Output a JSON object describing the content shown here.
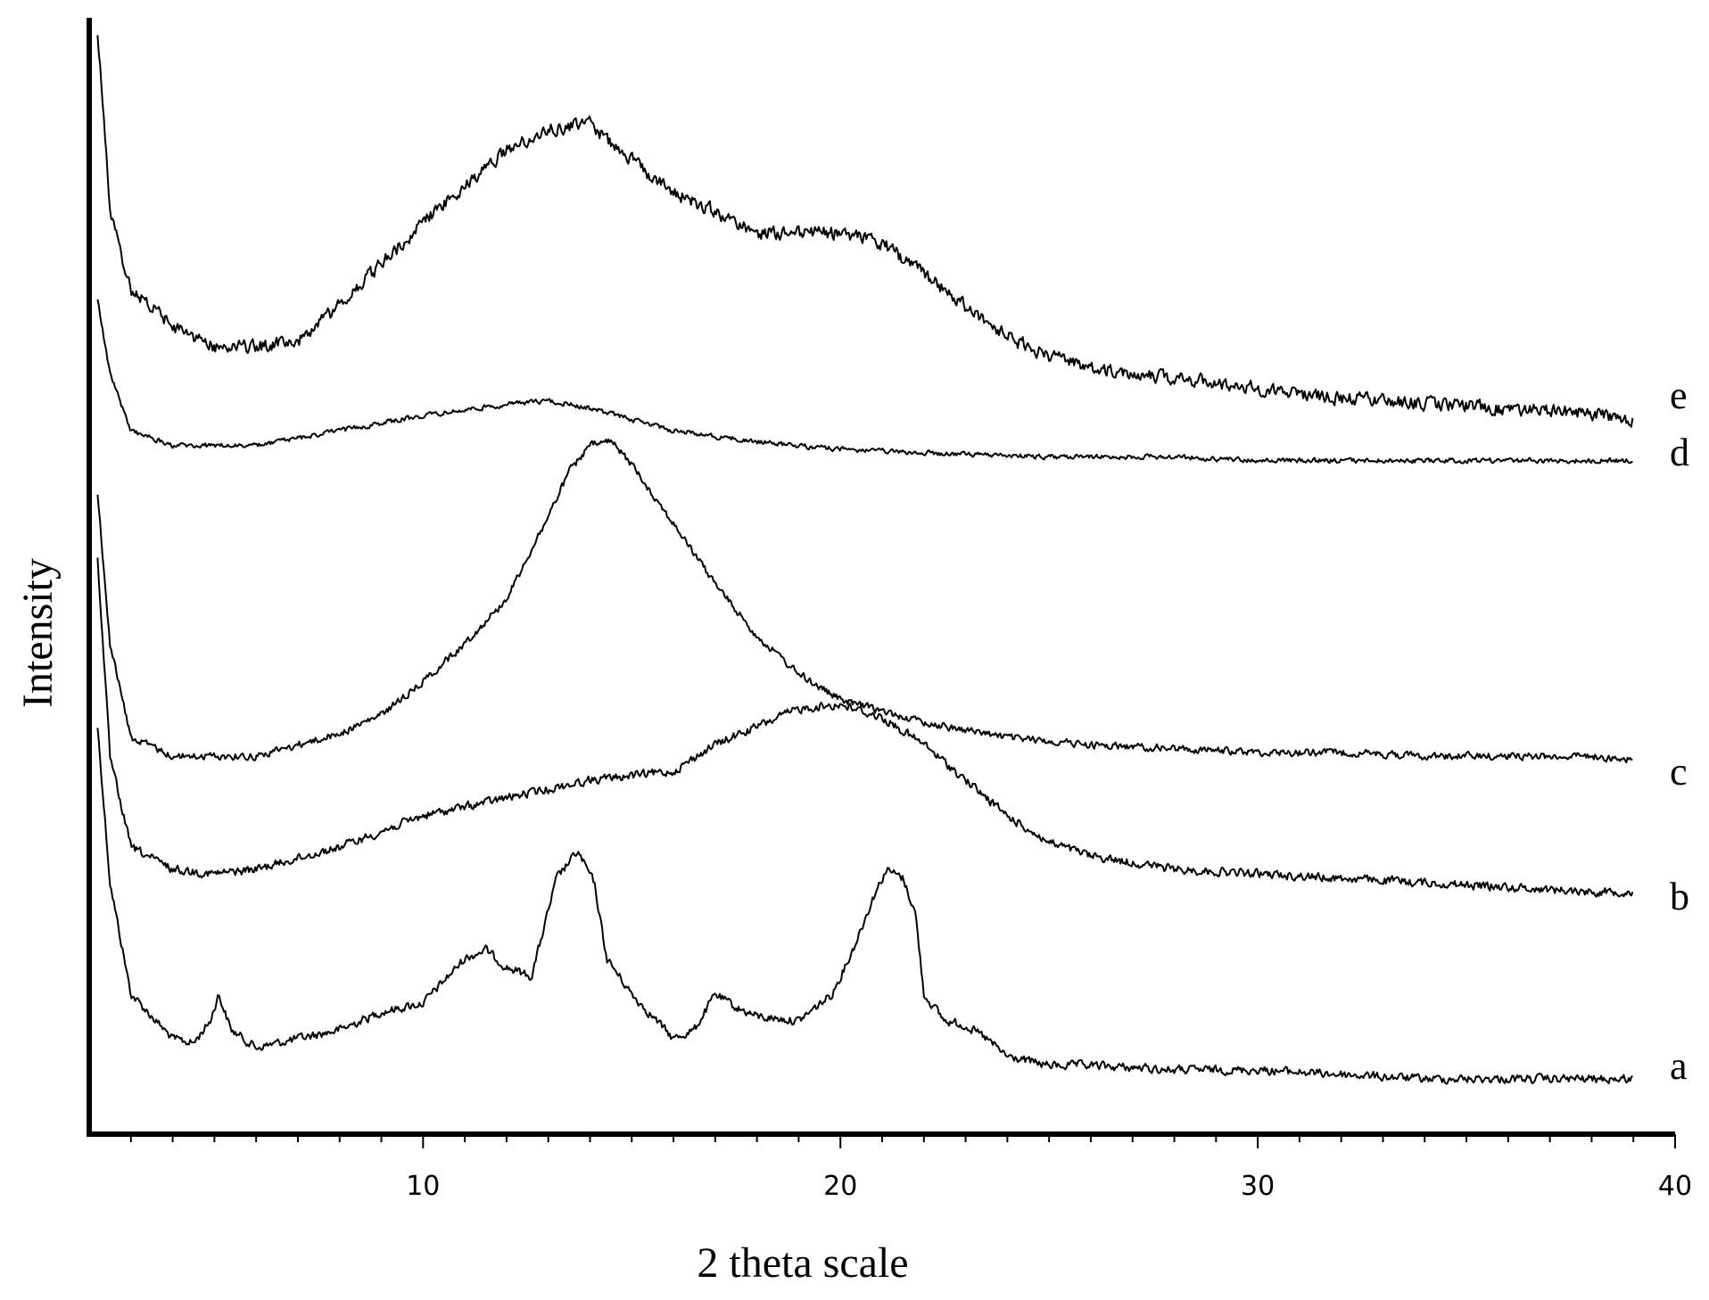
{
  "chart_data": {
    "type": "line",
    "title": "",
    "xlabel": "2 theta scale",
    "ylabel": "Intensity",
    "xlim": [
      2,
      40
    ],
    "x_ticks": [
      10,
      20,
      30,
      40
    ],
    "x_tick_labels": [
      "10",
      "20",
      "30",
      "40"
    ],
    "x_minor_tick_step": 1,
    "y_ticks_shown": false,
    "grid": false,
    "legend": "none (series labeled at right end of each trace)",
    "line_color": "#000000",
    "series": [
      {
        "label": "a",
        "points": [
          [
            2.2,
            0.8
          ],
          [
            2.5,
            0.45
          ],
          [
            3,
            0.2
          ],
          [
            4,
            0.1
          ],
          [
            4.5,
            0.09
          ],
          [
            4.9,
            0.14
          ],
          [
            5.1,
            0.2
          ],
          [
            5.4,
            0.12
          ],
          [
            6,
            0.08
          ],
          [
            7,
            0.1
          ],
          [
            8,
            0.12
          ],
          [
            9,
            0.16
          ],
          [
            10,
            0.18
          ],
          [
            11,
            0.28
          ],
          [
            11.5,
            0.3
          ],
          [
            12,
            0.26
          ],
          [
            12.6,
            0.24
          ],
          [
            13.2,
            0.46
          ],
          [
            13.7,
            0.52
          ],
          [
            14.1,
            0.45
          ],
          [
            14.4,
            0.28
          ],
          [
            15,
            0.2
          ],
          [
            15.6,
            0.14
          ],
          [
            16,
            0.1
          ],
          [
            16.5,
            0.12
          ],
          [
            17,
            0.2
          ],
          [
            17.5,
            0.17
          ],
          [
            18,
            0.15
          ],
          [
            19,
            0.14
          ],
          [
            19.8,
            0.2
          ],
          [
            20.3,
            0.3
          ],
          [
            20.8,
            0.42
          ],
          [
            21.1,
            0.48
          ],
          [
            21.5,
            0.46
          ],
          [
            21.8,
            0.38
          ],
          [
            22,
            0.2
          ],
          [
            22.5,
            0.14
          ],
          [
            23,
            0.13
          ],
          [
            23.5,
            0.1
          ],
          [
            24,
            0.06
          ],
          [
            25,
            0.04
          ],
          [
            26,
            0.04
          ],
          [
            28,
            0.03
          ],
          [
            30,
            0.03
          ],
          [
            32,
            0.02
          ],
          [
            34,
            0.01
          ],
          [
            36,
            0.01
          ],
          [
            38,
            0.01
          ],
          [
            39,
            0.01
          ]
        ]
      },
      {
        "label": "b",
        "points": [
          [
            2.2,
            0.8
          ],
          [
            2.5,
            0.35
          ],
          [
            3,
            0.15
          ],
          [
            4,
            0.1
          ],
          [
            5,
            0.09
          ],
          [
            6,
            0.1
          ],
          [
            8,
            0.15
          ],
          [
            10,
            0.22
          ],
          [
            12,
            0.26
          ],
          [
            14,
            0.3
          ],
          [
            16,
            0.32
          ],
          [
            17,
            0.38
          ],
          [
            18,
            0.42
          ],
          [
            19,
            0.46
          ],
          [
            20,
            0.47
          ],
          [
            21,
            0.44
          ],
          [
            22,
            0.38
          ],
          [
            23,
            0.3
          ],
          [
            24,
            0.22
          ],
          [
            25,
            0.16
          ],
          [
            26,
            0.13
          ],
          [
            28,
            0.1
          ],
          [
            30,
            0.09
          ],
          [
            32,
            0.08
          ],
          [
            34,
            0.07
          ],
          [
            36,
            0.06
          ],
          [
            38,
            0.05
          ],
          [
            39,
            0.05
          ]
        ]
      },
      {
        "label": "c",
        "points": [
          [
            2.2,
            0.8
          ],
          [
            2.5,
            0.4
          ],
          [
            3,
            0.15
          ],
          [
            4,
            0.1
          ],
          [
            6,
            0.1
          ],
          [
            8,
            0.16
          ],
          [
            9,
            0.21
          ],
          [
            10,
            0.3
          ],
          [
            11,
            0.4
          ],
          [
            12,
            0.52
          ],
          [
            13,
            0.74
          ],
          [
            13.5,
            0.86
          ],
          [
            14,
            0.93
          ],
          [
            14.5,
            0.94
          ],
          [
            15,
            0.88
          ],
          [
            16,
            0.72
          ],
          [
            17,
            0.56
          ],
          [
            18,
            0.42
          ],
          [
            19,
            0.32
          ],
          [
            20,
            0.25
          ],
          [
            21,
            0.22
          ],
          [
            22,
            0.19
          ],
          [
            23,
            0.17
          ],
          [
            24,
            0.15
          ],
          [
            26,
            0.13
          ],
          [
            28,
            0.12
          ],
          [
            30,
            0.11
          ],
          [
            32,
            0.11
          ],
          [
            34,
            0.1
          ],
          [
            36,
            0.1
          ],
          [
            38,
            0.1
          ],
          [
            39,
            0.09
          ]
        ]
      },
      {
        "label": "d",
        "points": [
          [
            2.2,
            0.45
          ],
          [
            2.5,
            0.25
          ],
          [
            3,
            0.1
          ],
          [
            4,
            0.06
          ],
          [
            6,
            0.06
          ],
          [
            8,
            0.1
          ],
          [
            10,
            0.14
          ],
          [
            12,
            0.17
          ],
          [
            13,
            0.18
          ],
          [
            14,
            0.16
          ],
          [
            15,
            0.13
          ],
          [
            16,
            0.1
          ],
          [
            18,
            0.07
          ],
          [
            20,
            0.05
          ],
          [
            22,
            0.04
          ],
          [
            25,
            0.03
          ],
          [
            28,
            0.03
          ],
          [
            30,
            0.02
          ],
          [
            35,
            0.02
          ],
          [
            39,
            0.02
          ]
        ]
      },
      {
        "label": "e",
        "points": [
          [
            2.2,
            0.75
          ],
          [
            2.5,
            0.4
          ],
          [
            3,
            0.25
          ],
          [
            4,
            0.18
          ],
          [
            5,
            0.14
          ],
          [
            6,
            0.14
          ],
          [
            7,
            0.15
          ],
          [
            8,
            0.22
          ],
          [
            9,
            0.3
          ],
          [
            10,
            0.38
          ],
          [
            11,
            0.45
          ],
          [
            12,
            0.52
          ],
          [
            13,
            0.56
          ],
          [
            14,
            0.57
          ],
          [
            15,
            0.5
          ],
          [
            16,
            0.44
          ],
          [
            17,
            0.4
          ],
          [
            18,
            0.36
          ],
          [
            19,
            0.36
          ],
          [
            20,
            0.36
          ],
          [
            21,
            0.34
          ],
          [
            22,
            0.28
          ],
          [
            23,
            0.22
          ],
          [
            24,
            0.16
          ],
          [
            25,
            0.12
          ],
          [
            26,
            0.1
          ],
          [
            28,
            0.08
          ],
          [
            30,
            0.06
          ],
          [
            32,
            0.04
          ],
          [
            34,
            0.03
          ],
          [
            36,
            0.02
          ],
          [
            38,
            0.01
          ],
          [
            39,
            0.0
          ]
        ]
      }
    ]
  }
}
